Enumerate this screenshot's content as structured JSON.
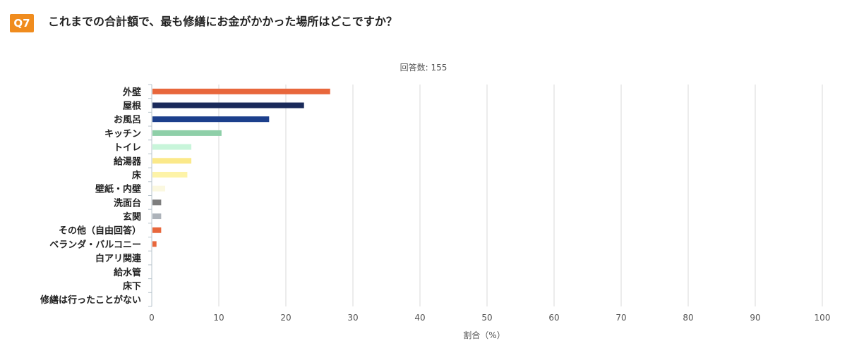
{
  "question": {
    "number": "Q7",
    "text": "これまでの合計額で、最も修繕にお金がかかった場所はどこですか？"
  },
  "chart_data": {
    "type": "bar",
    "orientation": "horizontal",
    "note": "回答数: 155",
    "xlabel": "割合（%）",
    "xlim": [
      0,
      100
    ],
    "xticks": [
      0,
      10,
      20,
      30,
      40,
      50,
      60,
      70,
      80,
      90,
      100
    ],
    "grid": true,
    "categories": [
      "外壁",
      "屋根",
      "お風呂",
      "キッチン",
      "トイレ",
      "給湯器",
      "床",
      "壁紙・内壁",
      "洗面台",
      "玄関",
      "その他（自由回答）",
      "ベランダ・バルコニー",
      "白アリ関連",
      "給水管",
      "床下",
      "修繕は行ったことがない"
    ],
    "values": [
      26.5,
      22.6,
      17.4,
      10.3,
      5.8,
      5.8,
      5.2,
      1.9,
      1.3,
      1.3,
      1.3,
      0.6,
      0,
      0,
      0,
      0
    ],
    "colors": [
      "#e8673c",
      "#1a2a5a",
      "#1c3f8c",
      "#8ecfa8",
      "#c8f5da",
      "#fbe98a",
      "#fdf3a8",
      "#fbf8e0",
      "#7d7d7d",
      "#adb3ba",
      "#e8673c",
      "#e8673c",
      "#cccccc",
      "#cccccc",
      "#cccccc",
      "#cccccc"
    ]
  }
}
